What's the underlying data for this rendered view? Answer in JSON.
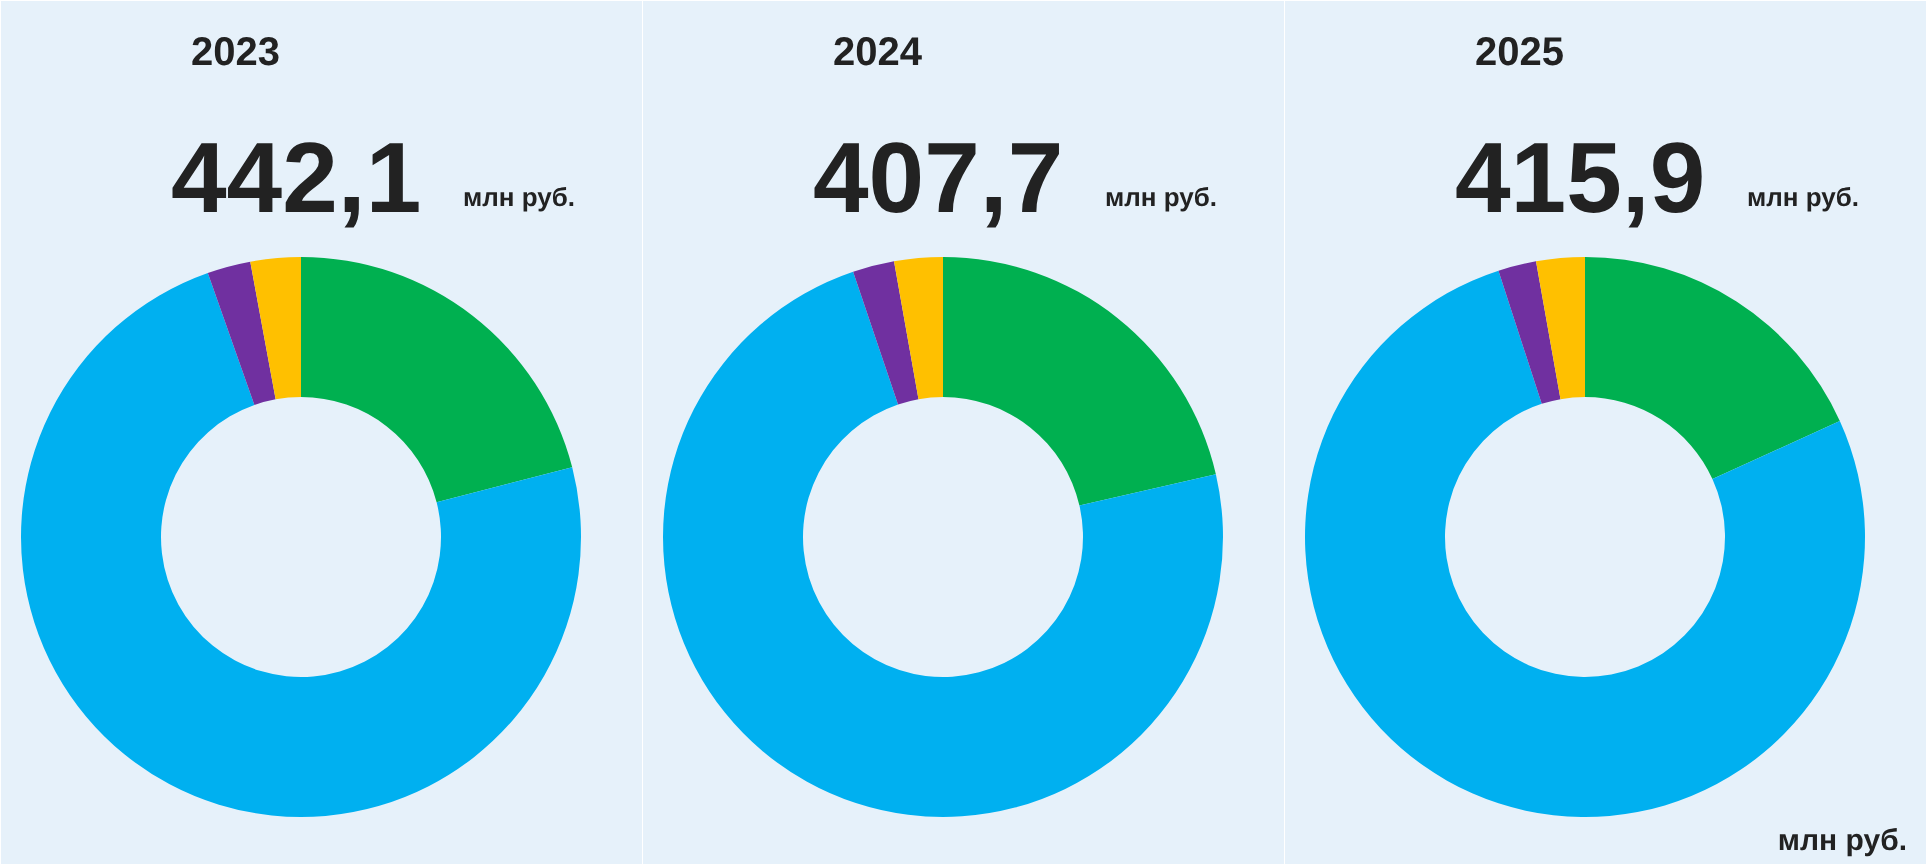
{
  "chart_data": [
    {
      "type": "donut",
      "title": "2023",
      "subtitle": "442,1",
      "annotations": [
        "млн  руб."
      ],
      "categories": [
        null,
        null,
        null,
        null
      ],
      "values": [
        21.0,
        73.6,
        2.5,
        2.9
      ],
      "colors": [
        "#00b050",
        "#00b0f0",
        "#7030a0",
        "#ffc000"
      ]
    },
    {
      "type": "donut",
      "title": "2024",
      "subtitle": "407,7",
      "annotations": [
        "млн руб."
      ],
      "categories": [
        null,
        null,
        null,
        null
      ],
      "values": [
        21.4,
        73.4,
        2.4,
        2.8
      ],
      "colors": [
        "#00b050",
        "#00b0f0",
        "#7030a0",
        "#ffc000"
      ]
    },
    {
      "type": "donut",
      "title": "2025",
      "subtitle": "415,9",
      "annotations": [
        "млн руб.",
        "млн руб."
      ],
      "categories": [
        null,
        null,
        null,
        null
      ],
      "values": [
        18.2,
        76.8,
        2.2,
        2.8
      ],
      "colors": [
        "#00b050",
        "#00b0f0",
        "#7030a0",
        "#ffc000"
      ]
    }
  ]
}
